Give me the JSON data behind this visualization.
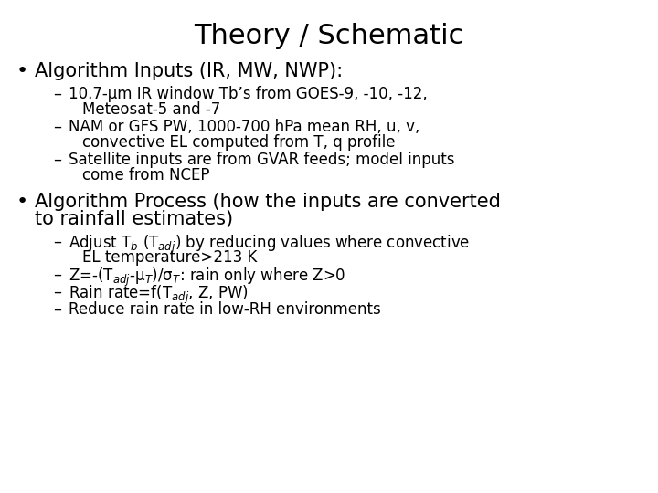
{
  "title": "Theory / Schematic",
  "title_fontsize": 22,
  "background_color": "#ffffff",
  "text_color": "#000000",
  "bullet1": "Algorithm Inputs (IR, MW, NWP):",
  "bullet_fontsize": 15,
  "sub1_1_line1": "10.7-μm IR window Tb’s from GOES-9, -10, -12,",
  "sub1_1_line2": "Meteosat-5 and -7",
  "sub1_2_line1": "NAM or GFS PW, 1000-700 hPa mean RH, u, v,",
  "sub1_2_line2": "convective EL computed from T, q profile",
  "sub1_3_line1": "Satellite inputs are from GVAR feeds; model inputs",
  "sub1_3_line2": "come from NCEP",
  "bullet2_line1": "Algorithm Process (how the inputs are converted",
  "bullet2_line2": "to rainfall estimates)",
  "sub2_1_line1": "Adjust T$_b$ (T$_{adj}$) by reducing values where convective",
  "sub2_1_line2": "EL temperature>213 K",
  "sub2_2_line1": "Z=-(T$_{adj}$-μ$_T$)/σ$_T$: rain only where Z>0",
  "sub2_3_line1": "Rain rate=f(T$_{adj}$, Z, PW)",
  "sub2_4_line1": "Reduce rain rate in low-RH environments",
  "sub_fontsize": 12
}
